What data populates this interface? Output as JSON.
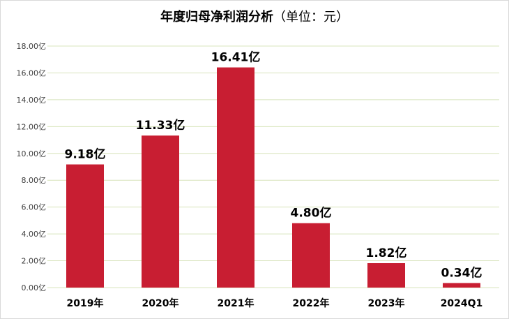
{
  "title": {
    "main": "年度归母净利润分析",
    "unit": "（单位：元）"
  },
  "chart_data": {
    "type": "bar",
    "categories": [
      "2019年",
      "2020年",
      "2021年",
      "2022年",
      "2023年",
      "2024Q1"
    ],
    "values": [
      9.18,
      11.33,
      16.41,
      4.8,
      1.82,
      0.34
    ],
    "data_labels": [
      "9.18亿",
      "11.33亿",
      "16.41亿",
      "4.80亿",
      "1.82亿",
      "0.34亿"
    ],
    "y_ticks": [
      0,
      2,
      4,
      6,
      8,
      10,
      12,
      14,
      16,
      18
    ],
    "y_tick_labels": [
      "0.00亿",
      "2.00亿",
      "4.00亿",
      "6.00亿",
      "8.00亿",
      "10.00亿",
      "12.00亿",
      "14.00亿",
      "16.00亿",
      "18.00亿"
    ],
    "ylim": [
      0,
      18
    ],
    "grid": true,
    "bar_color": "#c81e32",
    "grid_color": "#d8e4bc"
  }
}
